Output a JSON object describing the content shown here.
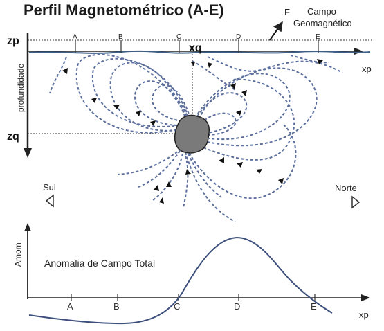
{
  "title": "Perfil Magnetométrico (A-E)",
  "field": {
    "symbol": "F",
    "label_line1": "Campo",
    "label_line2": "Geomagnético"
  },
  "axes": {
    "zp": "zp",
    "zq": "zq",
    "xq": "xq",
    "xp_top": "xp",
    "xp_bottom": "xp",
    "depth": "profundidade",
    "amom": "Amom"
  },
  "stations": [
    "A",
    "B",
    "C",
    "D",
    "E"
  ],
  "directions": {
    "south": "Sul",
    "north": "Norte"
  },
  "anomaly_label": "Anomalia de Campo Total",
  "colors": {
    "field_lines": "#5b6e9c",
    "body": "#7a7a7a",
    "ink": "#222222"
  }
}
